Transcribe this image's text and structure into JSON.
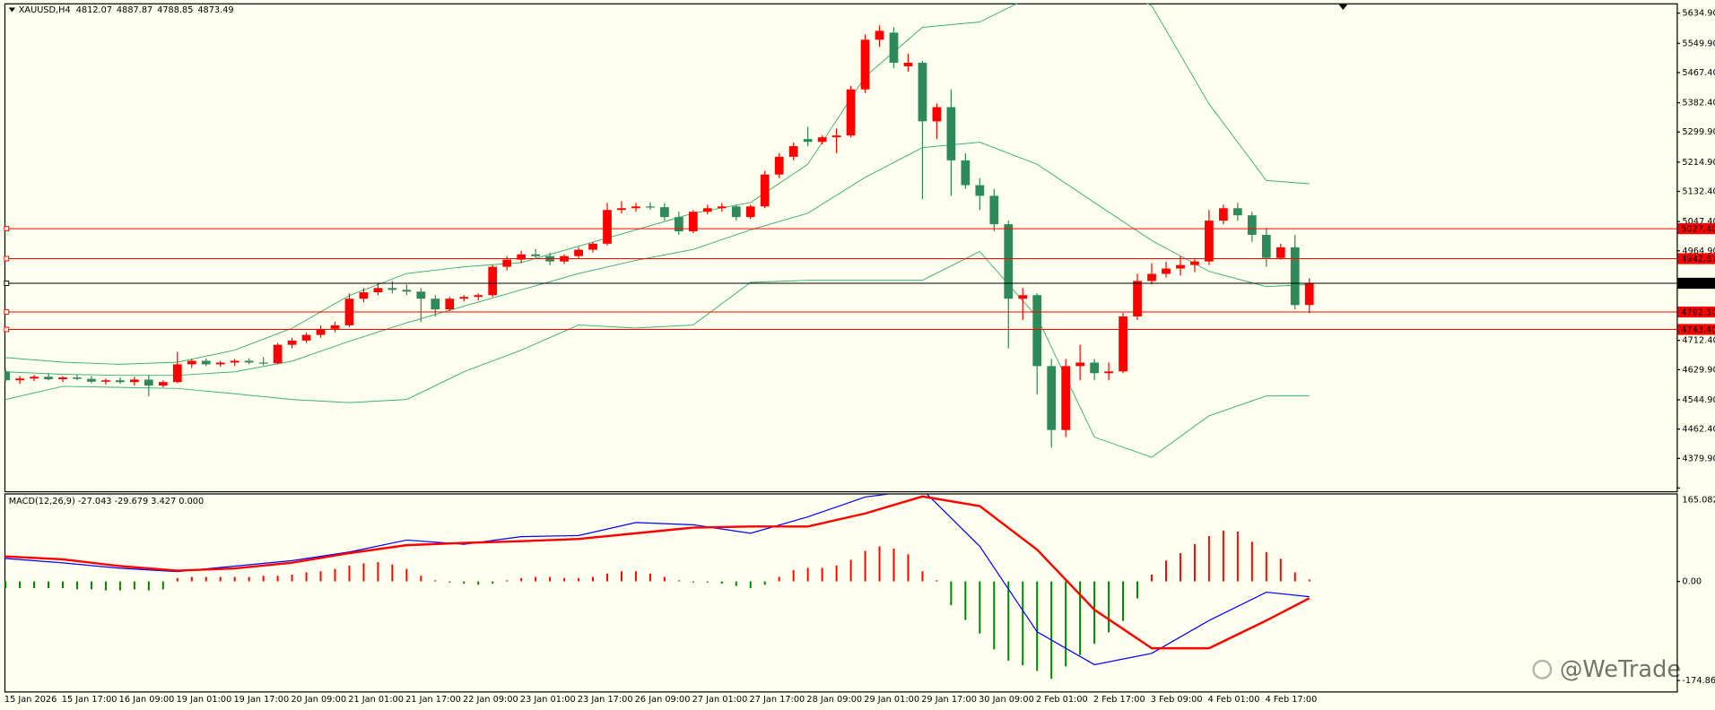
{
  "watermark": "@WeTrade",
  "chart_data": [
    {
      "type": "candlestick",
      "title": "XAUUSD,H4",
      "categories": [
        "15 Jan 2026",
        null,
        null,
        null,
        "15 Jan 17:00",
        null,
        null,
        null,
        "16 Jan 09:00",
        null,
        null,
        null,
        "19 Jan 01:00",
        null,
        null,
        null,
        "19 Jan 17:00",
        null,
        null,
        null,
        "20 Jan 09:00",
        null,
        null,
        null,
        "21 Jan 01:00",
        null,
        null,
        null,
        "21 Jan 17:00",
        null,
        null,
        null,
        "22 Jan 09:00",
        null,
        null,
        null,
        "23 Jan 01:00",
        null,
        null,
        null,
        "23 Jan 17:00",
        null,
        null,
        null,
        "26 Jan 09:00",
        null,
        null,
        null,
        "27 Jan 01:00",
        null,
        null,
        null,
        "27 Jan 17:00",
        null,
        null,
        null,
        "28 Jan 09:00",
        null,
        null,
        null,
        "29 Jan 01:00",
        null,
        null,
        null,
        "29 Jan 17:00",
        null,
        null,
        null,
        "30 Jan 09:00",
        null,
        null,
        null,
        "2 Feb 01:00",
        null,
        null,
        null,
        "2 Feb 17:00",
        null,
        null,
        null,
        "3 Feb 09:00",
        null,
        null,
        null,
        "4 Feb 01:00",
        null,
        null,
        null,
        "4 Feb 17:00",
        null,
        null,
        null
      ],
      "open": [
        4625,
        4600,
        4605,
        4610,
        4603,
        4608,
        4604,
        4596,
        4600,
        4595,
        4602,
        4585,
        4595,
        4645,
        4655,
        4645,
        4650,
        4655,
        4650,
        4648,
        4700,
        4712,
        4728,
        4745,
        4755,
        4830,
        4848,
        4860,
        4855,
        4850,
        4830,
        4800,
        4830,
        4835,
        4840,
        4920,
        4940,
        4955,
        4950,
        4935,
        4950,
        4968,
        4985,
        5080,
        5085,
        5090,
        5088,
        5060,
        5020,
        5075,
        5085,
        5090,
        5060,
        5090,
        5180,
        5230,
        5280,
        5272,
        5285,
        5290,
        5420,
        5560,
        5580,
        5485,
        5495,
        5330,
        5370,
        5220,
        5150,
        5120,
        5040,
        4830,
        4840,
        4640,
        4460,
        4640,
        4650,
        4620,
        4625,
        4780,
        4880,
        4900,
        4915,
        4925,
        4935,
        5050,
        5085,
        5065,
        5010,
        4945,
        4975,
        4812.07
      ],
      "high": [
        4632,
        4612,
        4615,
        4620,
        4612,
        4616,
        4612,
        4605,
        4608,
        4610,
        4615,
        4600,
        4680,
        4660,
        4662,
        4655,
        4660,
        4662,
        4665,
        4705,
        4720,
        4735,
        4755,
        4765,
        4845,
        4860,
        4875,
        4880,
        4870,
        4860,
        4840,
        4835,
        4840,
        4845,
        4925,
        4950,
        4965,
        4970,
        4960,
        4955,
        4975,
        4990,
        5100,
        5105,
        5100,
        5102,
        5100,
        5075,
        5080,
        5095,
        5100,
        5095,
        5095,
        5190,
        5240,
        5270,
        5315,
        5290,
        5310,
        5430,
        5575,
        5600,
        5595,
        5520,
        5500,
        5380,
        5420,
        5240,
        5170,
        5140,
        5050,
        4860,
        4845,
        4660,
        4660,
        4700,
        4660,
        4650,
        4790,
        4900,
        4930,
        4935,
        4950,
        4945,
        5080,
        5095,
        5100,
        5075,
        5030,
        4985,
        5010,
        4887.87
      ],
      "low": [
        4595,
        4590,
        4598,
        4600,
        4595,
        4600,
        4592,
        4588,
        4590,
        4585,
        4555,
        4580,
        4592,
        4635,
        4640,
        4638,
        4640,
        4645,
        4642,
        4645,
        4690,
        4705,
        4720,
        4735,
        4750,
        4820,
        4840,
        4845,
        4840,
        4765,
        4780,
        4795,
        4822,
        4825,
        4835,
        4910,
        4930,
        4945,
        4925,
        4928,
        4945,
        4960,
        4980,
        5070,
        5075,
        5080,
        5050,
        5010,
        5015,
        5068,
        5075,
        5050,
        5055,
        5085,
        5170,
        5220,
        5260,
        5265,
        5240,
        5285,
        5410,
        5540,
        5480,
        5470,
        5110,
        5280,
        5120,
        5140,
        5080,
        5020,
        4690,
        4770,
        4560,
        4410,
        4440,
        4600,
        4600,
        4600,
        4620,
        4770,
        4870,
        4890,
        4895,
        4905,
        4925,
        5040,
        5050,
        4990,
        4920,
        4940,
        4800,
        4788.85
      ],
      "close": [
        4600,
        4605,
        4610,
        4603,
        4608,
        4604,
        4596,
        4600,
        4595,
        4602,
        4585,
        4595,
        4645,
        4655,
        4645,
        4650,
        4655,
        4650,
        4648,
        4700,
        4712,
        4728,
        4745,
        4755,
        4830,
        4848,
        4860,
        4855,
        4850,
        4830,
        4800,
        4830,
        4835,
        4840,
        4920,
        4940,
        4955,
        4950,
        4935,
        4950,
        4968,
        4985,
        5080,
        5085,
        5090,
        5088,
        5060,
        5020,
        5075,
        5085,
        5090,
        5060,
        5090,
        5180,
        5230,
        5260,
        5272,
        5285,
        5290,
        5420,
        5560,
        5585,
        5495,
        5495,
        5330,
        5370,
        5220,
        5150,
        5120,
        5040,
        4830,
        4840,
        4640,
        4460,
        4640,
        4650,
        4620,
        4625,
        4780,
        4880,
        4900,
        4915,
        4925,
        4935,
        5050,
        5085,
        5065,
        5010,
        4945,
        4975,
        4812,
        4873.49
      ],
      "up_color": "#ff0000",
      "down_color": "#2e8b57",
      "ylim": [
        4287.4,
        5662.7
      ],
      "yticks": [
        {
          "value": 5634.9,
          "label": "5634.90"
        },
        {
          "value": 5549.9,
          "label": "5549.90"
        },
        {
          "value": 5467.4,
          "label": "5467.40"
        },
        {
          "value": 5382.4,
          "label": "5382.40"
        },
        {
          "value": 5299.9,
          "label": "5299.90"
        },
        {
          "value": 5214.9,
          "label": "5214.90"
        },
        {
          "value": 5132.4,
          "label": "5132.40"
        },
        {
          "value": 5047.4,
          "label": "5047.40"
        },
        {
          "value": 4964.9,
          "label": "4964.90"
        },
        {
          "value": 4712.4,
          "label": "4712.40"
        },
        {
          "value": 4629.9,
          "label": "4629.90"
        },
        {
          "value": 4544.9,
          "label": "4544.90"
        },
        {
          "value": 4462.4,
          "label": "4462.40"
        },
        {
          "value": 4379.9,
          "label": "4379.90"
        }
      ],
      "levels": [
        {
          "value": 5027.4,
          "label": "5027.40",
          "color": "#ff0000"
        },
        {
          "value": 4942.87,
          "label": "4942.87",
          "color": "#ff0000"
        },
        {
          "value": 4873.49,
          "label": "4873.49",
          "color": "#000000"
        },
        {
          "value": 4792.5,
          "label": "4792.50",
          "color": "#ff0000"
        },
        {
          "value": 4743.4,
          "label": "4743.40",
          "color": "#ff0000"
        }
      ],
      "bands": {
        "color": "#3cb371",
        "x": [
          0,
          4,
          8,
          12,
          16,
          20,
          24,
          28,
          32,
          36,
          40,
          44,
          48,
          52,
          56,
          60,
          64,
          68,
          72,
          76,
          80,
          84,
          88,
          91
        ],
        "series": [
          {
            "values": [
              4664,
              4651,
              4645,
              4651,
              4685,
              4747,
              4839,
              4901,
              4920,
              4932,
              4978,
              5024,
              5071,
              5101,
              5209,
              5456,
              5595,
              5610,
              5690,
              5730,
              5656,
              5379,
              5163,
              5154
            ]
          },
          {
            "values": [
              4624,
              4617,
              4614,
              4614,
              4624,
              4654,
              4710,
              4762,
              4809,
              4855,
              4901,
              4938,
              4969,
              5024,
              5071,
              5172,
              5256,
              5271,
              5209,
              5101,
              4994,
              4907,
              4864,
              4870
            ]
          },
          {
            "values": [
              4546,
              4583,
              4580,
              4577,
              4562,
              4546,
              4537,
              4546,
              4624,
              4685,
              4756,
              4747,
              4756,
              4876,
              4882,
              4882,
              4882,
              4963,
              4778,
              4440,
              4383,
              4500,
              4556,
              4556
            ]
          }
        ]
      }
    },
    {
      "type": "macd",
      "title": "MACD(12,26,9) -27.043 -29.679 3.427 0.000",
      "histogram": [
        -12,
        -12,
        -12,
        -12,
        -12,
        -14,
        -14,
        -16,
        -16,
        -14,
        -16,
        -14,
        6,
        8,
        8,
        8,
        8,
        8,
        10,
        10,
        12,
        16,
        18,
        22,
        28,
        32,
        34,
        30,
        22,
        10,
        2,
        -2,
        -4,
        -6,
        -4,
        2,
        6,
        8,
        8,
        6,
        6,
        8,
        14,
        18,
        18,
        14,
        8,
        2,
        -2,
        -2,
        -4,
        -8,
        -12,
        -6,
        8,
        20,
        24,
        24,
        28,
        38,
        54,
        62,
        58,
        48,
        18,
        2,
        -42,
        -68,
        -92,
        -120,
        -140,
        -148,
        -158,
        -172,
        -150,
        -130,
        -110,
        -90,
        -70,
        -30,
        12,
        37,
        50,
        66,
        80,
        90,
        88,
        70,
        52,
        40,
        16,
        3.427
      ],
      "positive_color": "#ff0000",
      "negative_color": "#008000",
      "lines": [
        {
          "color": "#0000ff",
          "x": [
            0,
            4,
            8,
            12,
            16,
            20,
            24,
            28,
            32,
            36,
            40,
            44,
            48,
            52,
            56,
            60,
            64,
            68,
            72,
            76,
            80,
            84,
            88,
            91
          ],
          "values": [
            40.5,
            32.8,
            23.2,
            17.4,
            27,
            36.7,
            52,
            73,
            65.6,
            79,
            81,
            104,
            100,
            85,
            114,
            149,
            162,
            62,
            -89,
            -147,
            -127,
            -69,
            -19,
            -27.043
          ]
        },
        {
          "color": "#ff0000",
          "x": [
            0,
            4,
            8,
            12,
            16,
            20,
            24,
            28,
            32,
            36,
            40,
            44,
            48,
            52,
            56,
            60,
            64,
            68,
            72,
            76,
            80,
            84,
            88,
            91
          ],
          "values": [
            44,
            39,
            27,
            19,
            23,
            33,
            50,
            64,
            68,
            71,
            75,
            85,
            95,
            97,
            97,
            120,
            150,
            133,
            56,
            -50,
            -118,
            -118,
            -69,
            -29.679
          ]
        }
      ],
      "ylim": [
        -174.867,
        165.082
      ],
      "yticks": [
        {
          "value": 165.082,
          "label": "165.082"
        },
        {
          "value": 0,
          "label": "0.00"
        },
        {
          "value": -174.867,
          "label": "-174.867"
        }
      ]
    }
  ]
}
